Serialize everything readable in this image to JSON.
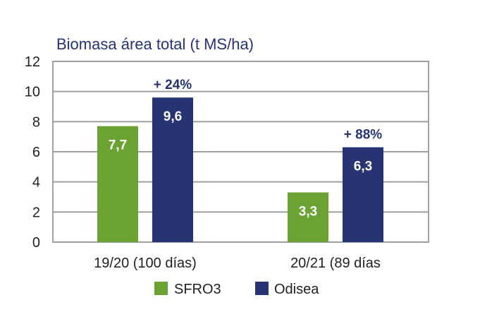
{
  "chart_data": {
    "type": "bar",
    "ylabel": "Biomasa área total (t MS/ha)",
    "categories": [
      "19/20 (100 días)",
      "20/21 (89 días"
    ],
    "series": [
      {
        "name": "SFRO3",
        "color": "#6aa233",
        "values": [
          7.7,
          3.3
        ],
        "labels": [
          "7,7",
          "3,3"
        ]
      },
      {
        "name": "Odisea",
        "color": "#283374",
        "values": [
          9.6,
          6.3
        ],
        "labels": [
          "9,6",
          "6,3"
        ]
      }
    ],
    "annotations": [
      "+ 24%",
      "+ 88%"
    ],
    "ylim": [
      0,
      12
    ],
    "yticks": [
      0,
      2,
      4,
      6,
      8,
      10,
      12
    ],
    "grid": true,
    "legend_position": "bottom",
    "colors": {
      "axis_text": "#231f20",
      "ylabel_text": "#283374",
      "annotation_text": "#283374",
      "grid": "#9d9fa2",
      "frame": "#9d9fa2"
    }
  }
}
